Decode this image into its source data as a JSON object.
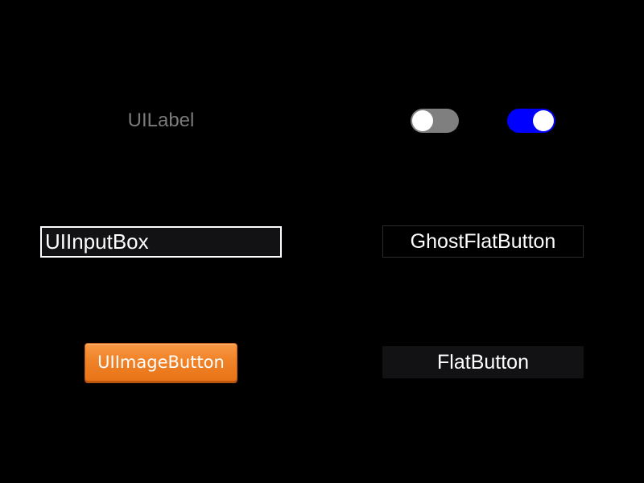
{
  "label": {
    "text": "UILabel",
    "color": "#7a7a7a"
  },
  "toggles": [
    {
      "state": "off",
      "track_color": "#7f7f7f",
      "knob_color": "#ffffff"
    },
    {
      "state": "on",
      "track_color": "#0000ff",
      "knob_color": "#ffffff"
    }
  ],
  "input_box": {
    "value": "UIInputBox",
    "border_color": "#ffffff",
    "background": "#121114"
  },
  "ghost_flat_button": {
    "label": "GhostFlatButton",
    "border_color": "#2a2a2e"
  },
  "image_button": {
    "label": "UIImageButton",
    "color": "#f08228"
  },
  "flat_button": {
    "label": "FlatButton",
    "background": "#121114"
  }
}
